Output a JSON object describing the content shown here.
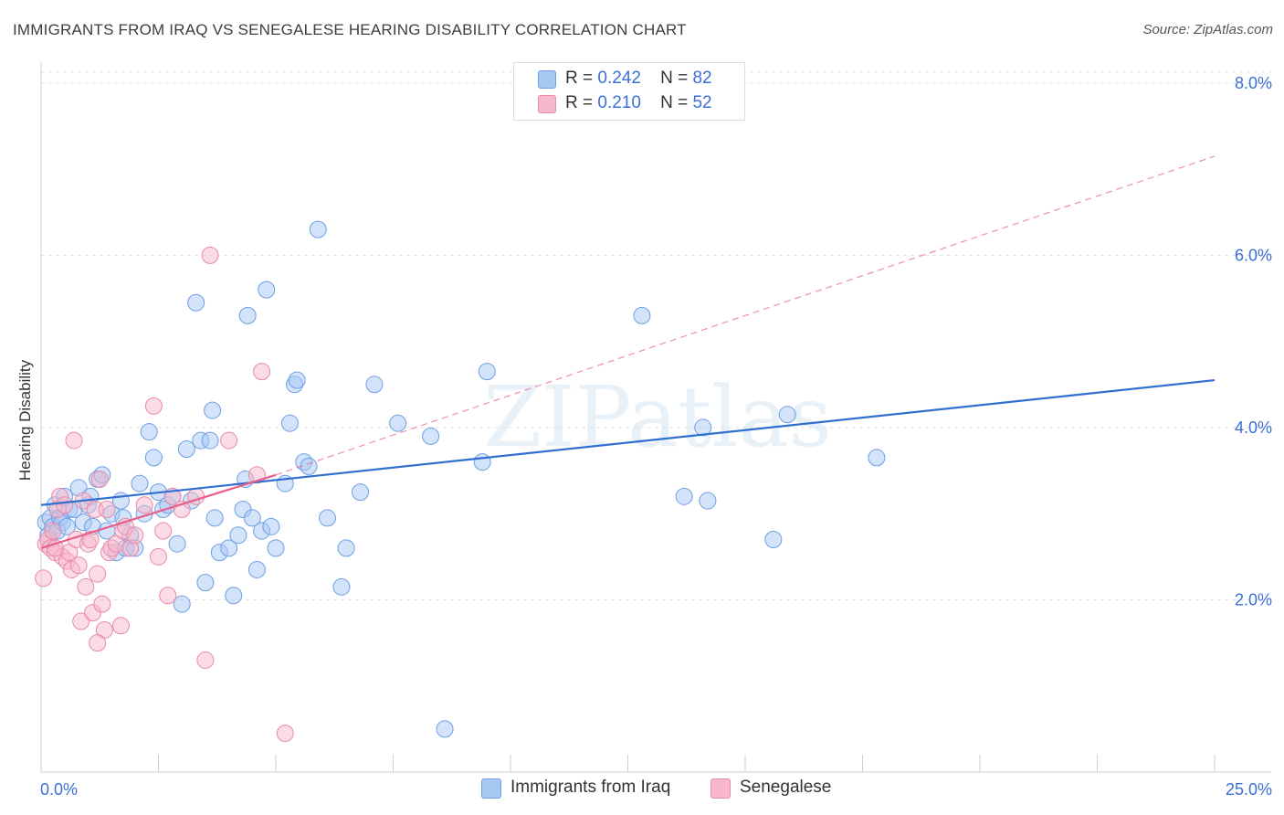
{
  "title": "IMMIGRANTS FROM IRAQ VS SENEGALESE HEARING DISABILITY CORRELATION CHART",
  "source": "Source: ZipAtlas.com",
  "legend": {
    "r_label": "R =",
    "n_label": "N =",
    "items": [
      {
        "name": "Immigrants from Iraq",
        "r": "0.242",
        "n": "82",
        "color": "#a8c8f4",
        "stroke": "#6e9fe3"
      },
      {
        "name": "Senegalese",
        "r": "0.210",
        "n": "52",
        "color": "#f7b8cb",
        "stroke": "#e88aa8"
      }
    ]
  },
  "colors": {
    "blue_line": "#2f6fd0",
    "pink_line": "#e8608a",
    "axis_text": "#3a6fd8",
    "grid": "#e1e1e1"
  },
  "chart_data": {
    "type": "scatter",
    "title": "IMMIGRANTS FROM IRAQ VS SENEGALESE HEARING DISABILITY CORRELATION CHART",
    "xlabel": "",
    "ylabel": "Hearing Disability",
    "xlim": [
      0,
      25
    ],
    "ylim": [
      0,
      8.2
    ],
    "x_tick_labels": [
      "0.0%",
      "25.0%"
    ],
    "y_ticks": [
      2,
      4,
      6,
      8
    ],
    "y_tick_labels": [
      "2.0%",
      "4.0%",
      "6.0%",
      "8.0%"
    ],
    "watermark": "ZIPatlas",
    "series": [
      {
        "name": "Immigrants from Iraq",
        "r": 0.242,
        "n": 82,
        "trend": {
          "x": [
            0,
            25
          ],
          "y": [
            3.1,
            4.55
          ],
          "style": "solid"
        },
        "points": [
          {
            "x": 0.1,
            "y": 2.9
          },
          {
            "x": 0.15,
            "y": 2.75
          },
          {
            "x": 0.2,
            "y": 2.95
          },
          {
            "x": 0.25,
            "y": 2.85
          },
          {
            "x": 0.3,
            "y": 3.1
          },
          {
            "x": 0.35,
            "y": 2.8
          },
          {
            "x": 0.4,
            "y": 2.95
          },
          {
            "x": 0.45,
            "y": 2.9
          },
          {
            "x": 0.5,
            "y": 3.2
          },
          {
            "x": 0.55,
            "y": 2.85
          },
          {
            "x": 0.6,
            "y": 3.05
          },
          {
            "x": 0.7,
            "y": 3.05
          },
          {
            "x": 0.8,
            "y": 3.3
          },
          {
            "x": 0.9,
            "y": 2.9
          },
          {
            "x": 1.0,
            "y": 3.1
          },
          {
            "x": 1.05,
            "y": 3.2
          },
          {
            "x": 1.1,
            "y": 2.85
          },
          {
            "x": 1.2,
            "y": 3.4
          },
          {
            "x": 1.3,
            "y": 3.45
          },
          {
            "x": 1.4,
            "y": 2.8
          },
          {
            "x": 1.5,
            "y": 3.0
          },
          {
            "x": 1.6,
            "y": 2.55
          },
          {
            "x": 1.7,
            "y": 3.15
          },
          {
            "x": 1.75,
            "y": 2.95
          },
          {
            "x": 1.8,
            "y": 2.6
          },
          {
            "x": 1.9,
            "y": 2.75
          },
          {
            "x": 2.0,
            "y": 2.6
          },
          {
            "x": 2.1,
            "y": 3.35
          },
          {
            "x": 2.2,
            "y": 3.0
          },
          {
            "x": 2.3,
            "y": 3.95
          },
          {
            "x": 2.4,
            "y": 3.65
          },
          {
            "x": 2.5,
            "y": 3.25
          },
          {
            "x": 2.6,
            "y": 3.05
          },
          {
            "x": 2.7,
            "y": 3.1
          },
          {
            "x": 2.8,
            "y": 3.2
          },
          {
            "x": 2.9,
            "y": 2.65
          },
          {
            "x": 3.0,
            "y": 1.95
          },
          {
            "x": 3.1,
            "y": 3.75
          },
          {
            "x": 3.2,
            "y": 3.15
          },
          {
            "x": 3.3,
            "y": 5.45
          },
          {
            "x": 3.4,
            "y": 3.85
          },
          {
            "x": 3.5,
            "y": 2.2
          },
          {
            "x": 3.6,
            "y": 3.85
          },
          {
            "x": 3.65,
            "y": 4.2
          },
          {
            "x": 3.7,
            "y": 2.95
          },
          {
            "x": 3.8,
            "y": 2.55
          },
          {
            "x": 4.0,
            "y": 2.6
          },
          {
            "x": 4.1,
            "y": 2.05
          },
          {
            "x": 4.2,
            "y": 2.75
          },
          {
            "x": 4.3,
            "y": 3.05
          },
          {
            "x": 4.35,
            "y": 3.4
          },
          {
            "x": 4.4,
            "y": 5.3
          },
          {
            "x": 4.5,
            "y": 2.95
          },
          {
            "x": 4.6,
            "y": 2.35
          },
          {
            "x": 4.7,
            "y": 2.8
          },
          {
            "x": 4.8,
            "y": 5.6
          },
          {
            "x": 4.9,
            "y": 2.85
          },
          {
            "x": 5.0,
            "y": 2.6
          },
          {
            "x": 5.2,
            "y": 3.35
          },
          {
            "x": 5.3,
            "y": 4.05
          },
          {
            "x": 5.4,
            "y": 4.5
          },
          {
            "x": 5.45,
            "y": 4.55
          },
          {
            "x": 5.6,
            "y": 3.6
          },
          {
            "x": 5.7,
            "y": 3.55
          },
          {
            "x": 5.9,
            "y": 6.3
          },
          {
            "x": 6.1,
            "y": 2.95
          },
          {
            "x": 6.4,
            "y": 2.15
          },
          {
            "x": 6.5,
            "y": 2.6
          },
          {
            "x": 6.8,
            "y": 3.25
          },
          {
            "x": 7.1,
            "y": 4.5
          },
          {
            "x": 7.6,
            "y": 4.05
          },
          {
            "x": 8.3,
            "y": 3.9
          },
          {
            "x": 8.6,
            "y": 0.5
          },
          {
            "x": 9.4,
            "y": 3.6
          },
          {
            "x": 9.5,
            "y": 4.65
          },
          {
            "x": 12.8,
            "y": 5.3
          },
          {
            "x": 13.7,
            "y": 3.2
          },
          {
            "x": 14.1,
            "y": 4.0
          },
          {
            "x": 14.2,
            "y": 3.15
          },
          {
            "x": 15.6,
            "y": 2.7
          },
          {
            "x": 15.9,
            "y": 4.15
          },
          {
            "x": 17.8,
            "y": 3.65
          }
        ]
      },
      {
        "name": "Senegalese",
        "r": 0.21,
        "n": 52,
        "trend": {
          "x": [
            0,
            5
          ],
          "y": [
            2.6,
            3.45
          ],
          "style": "solid",
          "extended": {
            "x": [
              5,
              25
            ],
            "y": [
              3.45,
              7.15
            ],
            "style": "dashed"
          }
        },
        "points": [
          {
            "x": 0.05,
            "y": 2.25
          },
          {
            "x": 0.1,
            "y": 2.65
          },
          {
            "x": 0.15,
            "y": 2.7
          },
          {
            "x": 0.2,
            "y": 2.6
          },
          {
            "x": 0.25,
            "y": 2.8
          },
          {
            "x": 0.3,
            "y": 2.55
          },
          {
            "x": 0.35,
            "y": 3.05
          },
          {
            "x": 0.4,
            "y": 3.2
          },
          {
            "x": 0.45,
            "y": 2.5
          },
          {
            "x": 0.5,
            "y": 3.1
          },
          {
            "x": 0.55,
            "y": 2.45
          },
          {
            "x": 0.6,
            "y": 2.55
          },
          {
            "x": 0.65,
            "y": 2.35
          },
          {
            "x": 0.7,
            "y": 3.85
          },
          {
            "x": 0.75,
            "y": 2.7
          },
          {
            "x": 0.8,
            "y": 2.4
          },
          {
            "x": 0.85,
            "y": 1.75
          },
          {
            "x": 0.9,
            "y": 3.15
          },
          {
            "x": 0.95,
            "y": 2.15
          },
          {
            "x": 1.0,
            "y": 2.65
          },
          {
            "x": 1.05,
            "y": 2.7
          },
          {
            "x": 1.1,
            "y": 1.85
          },
          {
            "x": 1.15,
            "y": 3.05
          },
          {
            "x": 1.2,
            "y": 2.3
          },
          {
            "x": 1.25,
            "y": 3.4
          },
          {
            "x": 1.3,
            "y": 1.95
          },
          {
            "x": 1.35,
            "y": 1.65
          },
          {
            "x": 1.4,
            "y": 3.05
          },
          {
            "x": 1.45,
            "y": 2.55
          },
          {
            "x": 1.5,
            "y": 2.6
          },
          {
            "x": 1.6,
            "y": 2.65
          },
          {
            "x": 1.7,
            "y": 1.7
          },
          {
            "x": 1.75,
            "y": 2.8
          },
          {
            "x": 1.8,
            "y": 2.85
          },
          {
            "x": 1.9,
            "y": 2.6
          },
          {
            "x": 2.0,
            "y": 2.75
          },
          {
            "x": 2.2,
            "y": 3.1
          },
          {
            "x": 2.4,
            "y": 4.25
          },
          {
            "x": 2.5,
            "y": 2.5
          },
          {
            "x": 2.6,
            "y": 2.8
          },
          {
            "x": 2.7,
            "y": 2.05
          },
          {
            "x": 2.8,
            "y": 3.2
          },
          {
            "x": 3.0,
            "y": 3.05
          },
          {
            "x": 3.3,
            "y": 3.2
          },
          {
            "x": 3.5,
            "y": 1.3
          },
          {
            "x": 3.6,
            "y": 6.0
          },
          {
            "x": 4.0,
            "y": 3.85
          },
          {
            "x": 4.6,
            "y": 3.45
          },
          {
            "x": 4.7,
            "y": 4.65
          },
          {
            "x": 5.2,
            "y": 0.45
          },
          {
            "x": 1.2,
            "y": 1.5
          },
          {
            "x": 0.3,
            "y": 2.6
          }
        ]
      }
    ]
  }
}
